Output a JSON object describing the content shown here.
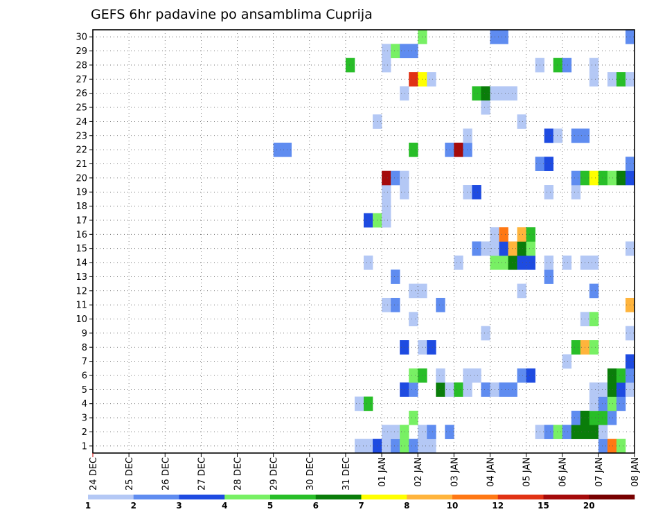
{
  "chart_data": {
    "type": "heatmap",
    "title": "GEFS 6hr padavine po ansamblima Cuprija",
    "x_tick_labels": [
      "24 DEC",
      "25 DEC",
      "26 DEC",
      "27 DEC",
      "28 DEC",
      "29 DEC",
      "30 DEC",
      "31 DEC",
      "01 JAN",
      "02 JAN",
      "03 JAN",
      "04 JAN",
      "05 JAN",
      "06 JAN",
      "07 JAN",
      "08 JAN"
    ],
    "x_unit": "6-hour steps",
    "x_range": [
      0,
      60
    ],
    "y_range": [
      0.5,
      30.5
    ],
    "y_ticks": [
      1,
      2,
      3,
      4,
      5,
      6,
      7,
      8,
      9,
      10,
      11,
      12,
      13,
      14,
      15,
      16,
      17,
      18,
      19,
      20,
      21,
      22,
      23,
      24,
      25,
      26,
      27,
      28,
      29,
      30
    ],
    "grid": true,
    "legend_position": "bottom",
    "legend": {
      "labels": [
        "1",
        "2",
        "3",
        "4",
        "5",
        "6",
        "7",
        "8",
        "10",
        "12",
        "15",
        "20"
      ],
      "colors": [
        "#b4c8f5",
        "#5f8cf0",
        "#1e4be1",
        "#78f064",
        "#28be28",
        "#0a7d0a",
        "#ffff00",
        "#ffb43c",
        "#ff7814",
        "#e13214",
        "#a50a0a",
        "#780000"
      ]
    },
    "levels": [
      1,
      2,
      3,
      4,
      5,
      6,
      7,
      8,
      10,
      12,
      15,
      20
    ],
    "cells": [
      [
        29,
        0,
        1
      ],
      [
        30,
        0,
        1
      ],
      [
        31,
        0,
        3
      ],
      [
        32,
        0,
        1
      ],
      [
        33,
        0,
        2
      ],
      [
        34,
        0,
        4
      ],
      [
        35,
        0,
        2
      ],
      [
        36,
        0,
        1
      ],
      [
        37,
        0,
        1
      ],
      [
        56,
        0,
        2
      ],
      [
        57,
        0,
        10
      ],
      [
        58,
        0,
        4
      ],
      [
        32,
        1,
        1
      ],
      [
        33,
        1,
        1
      ],
      [
        34,
        1,
        4
      ],
      [
        36,
        1,
        1
      ],
      [
        37,
        1,
        2
      ],
      [
        39,
        1,
        2
      ],
      [
        49,
        1,
        1
      ],
      [
        50,
        1,
        2
      ],
      [
        51,
        1,
        4
      ],
      [
        52,
        1,
        2
      ],
      [
        53,
        1,
        6
      ],
      [
        54,
        1,
        6
      ],
      [
        55,
        1,
        6
      ],
      [
        56,
        1,
        1
      ],
      [
        35,
        2,
        4
      ],
      [
        53,
        2,
        2
      ],
      [
        54,
        2,
        6
      ],
      [
        55,
        2,
        5
      ],
      [
        56,
        2,
        5
      ],
      [
        57,
        2,
        2
      ],
      [
        29,
        3,
        1
      ],
      [
        30,
        3,
        5
      ],
      [
        55,
        3,
        1
      ],
      [
        56,
        3,
        2
      ],
      [
        57,
        3,
        4
      ],
      [
        58,
        3,
        2
      ],
      [
        34,
        4,
        3
      ],
      [
        35,
        4,
        2
      ],
      [
        38,
        4,
        6
      ],
      [
        39,
        4,
        1
      ],
      [
        40,
        4,
        5
      ],
      [
        41,
        4,
        1
      ],
      [
        43,
        4,
        2
      ],
      [
        44,
        4,
        1
      ],
      [
        45,
        4,
        2
      ],
      [
        46,
        4,
        2
      ],
      [
        55,
        4,
        1
      ],
      [
        56,
        4,
        1
      ],
      [
        57,
        4,
        6
      ],
      [
        58,
        4,
        3
      ],
      [
        59,
        4,
        1
      ],
      [
        35,
        5,
        4
      ],
      [
        36,
        5,
        5
      ],
      [
        38,
        5,
        1
      ],
      [
        41,
        5,
        1
      ],
      [
        42,
        5,
        1
      ],
      [
        47,
        5,
        2
      ],
      [
        48,
        5,
        3
      ],
      [
        57,
        5,
        6
      ],
      [
        58,
        5,
        5
      ],
      [
        59,
        5,
        2
      ],
      [
        52,
        6,
        1
      ],
      [
        59,
        6,
        3
      ],
      [
        34,
        7,
        3
      ],
      [
        36,
        7,
        1
      ],
      [
        37,
        7,
        3
      ],
      [
        53,
        7,
        5
      ],
      [
        54,
        7,
        8
      ],
      [
        55,
        7,
        4
      ],
      [
        43,
        8,
        1
      ],
      [
        59,
        8,
        1
      ],
      [
        35,
        9,
        1
      ],
      [
        54,
        9,
        1
      ],
      [
        55,
        9,
        4
      ],
      [
        32,
        10,
        1
      ],
      [
        33,
        10,
        2
      ],
      [
        38,
        10,
        2
      ],
      [
        59,
        10,
        8
      ],
      [
        35,
        11,
        1
      ],
      [
        36,
        11,
        1
      ],
      [
        47,
        11,
        1
      ],
      [
        55,
        11,
        2
      ],
      [
        33,
        12,
        2
      ],
      [
        50,
        12,
        2
      ],
      [
        30,
        13,
        1
      ],
      [
        40,
        13,
        1
      ],
      [
        44,
        13,
        4
      ],
      [
        45,
        13,
        4
      ],
      [
        46,
        13,
        6
      ],
      [
        47,
        13,
        3
      ],
      [
        48,
        13,
        3
      ],
      [
        50,
        13,
        1
      ],
      [
        52,
        13,
        1
      ],
      [
        54,
        13,
        1
      ],
      [
        55,
        13,
        1
      ],
      [
        42,
        14,
        2
      ],
      [
        43,
        14,
        1
      ],
      [
        44,
        14,
        1
      ],
      [
        45,
        14,
        3
      ],
      [
        46,
        14,
        8
      ],
      [
        47,
        14,
        6
      ],
      [
        48,
        14,
        4
      ],
      [
        59,
        14,
        1
      ],
      [
        44,
        15,
        1
      ],
      [
        45,
        15,
        10
      ],
      [
        47,
        15,
        8
      ],
      [
        48,
        15,
        5
      ],
      [
        30,
        16,
        3
      ],
      [
        31,
        16,
        4
      ],
      [
        32,
        16,
        1
      ],
      [
        32,
        17,
        1
      ],
      [
        32,
        18,
        1
      ],
      [
        34,
        18,
        1
      ],
      [
        41,
        18,
        1
      ],
      [
        42,
        18,
        3
      ],
      [
        50,
        18,
        1
      ],
      [
        53,
        18,
        1
      ],
      [
        32,
        19,
        15
      ],
      [
        33,
        19,
        2
      ],
      [
        34,
        19,
        1
      ],
      [
        53,
        19,
        2
      ],
      [
        54,
        19,
        5
      ],
      [
        55,
        19,
        7
      ],
      [
        56,
        19,
        5
      ],
      [
        57,
        19,
        4
      ],
      [
        58,
        19,
        6
      ],
      [
        59,
        19,
        3
      ],
      [
        49,
        20,
        2
      ],
      [
        50,
        20,
        3
      ],
      [
        59,
        20,
        2
      ],
      [
        20,
        21,
        2
      ],
      [
        21,
        21,
        2
      ],
      [
        35,
        21,
        5
      ],
      [
        39,
        21,
        2
      ],
      [
        40,
        21,
        15
      ],
      [
        41,
        21,
        2
      ],
      [
        41,
        22,
        1
      ],
      [
        50,
        22,
        3
      ],
      [
        51,
        22,
        1
      ],
      [
        53,
        22,
        2
      ],
      [
        54,
        22,
        2
      ],
      [
        31,
        23,
        1
      ],
      [
        47,
        23,
        1
      ],
      [
        43,
        24,
        1
      ],
      [
        34,
        25,
        1
      ],
      [
        42,
        25,
        5
      ],
      [
        43,
        25,
        6
      ],
      [
        44,
        25,
        1
      ],
      [
        45,
        25,
        1
      ],
      [
        46,
        25,
        1
      ],
      [
        35,
        26,
        12
      ],
      [
        36,
        26,
        7
      ],
      [
        37,
        26,
        1
      ],
      [
        55,
        26,
        1
      ],
      [
        57,
        26,
        1
      ],
      [
        58,
        26,
        5
      ],
      [
        59,
        26,
        1
      ],
      [
        28,
        27,
        5
      ],
      [
        32,
        27,
        1
      ],
      [
        49,
        27,
        1
      ],
      [
        51,
        27,
        5
      ],
      [
        52,
        27,
        2
      ],
      [
        55,
        27,
        1
      ],
      [
        32,
        28,
        1
      ],
      [
        33,
        28,
        4
      ],
      [
        34,
        28,
        2
      ],
      [
        35,
        28,
        2
      ],
      [
        36,
        29,
        4
      ],
      [
        44,
        29,
        2
      ],
      [
        45,
        29,
        2
      ],
      [
        59,
        29,
        2
      ]
    ]
  }
}
